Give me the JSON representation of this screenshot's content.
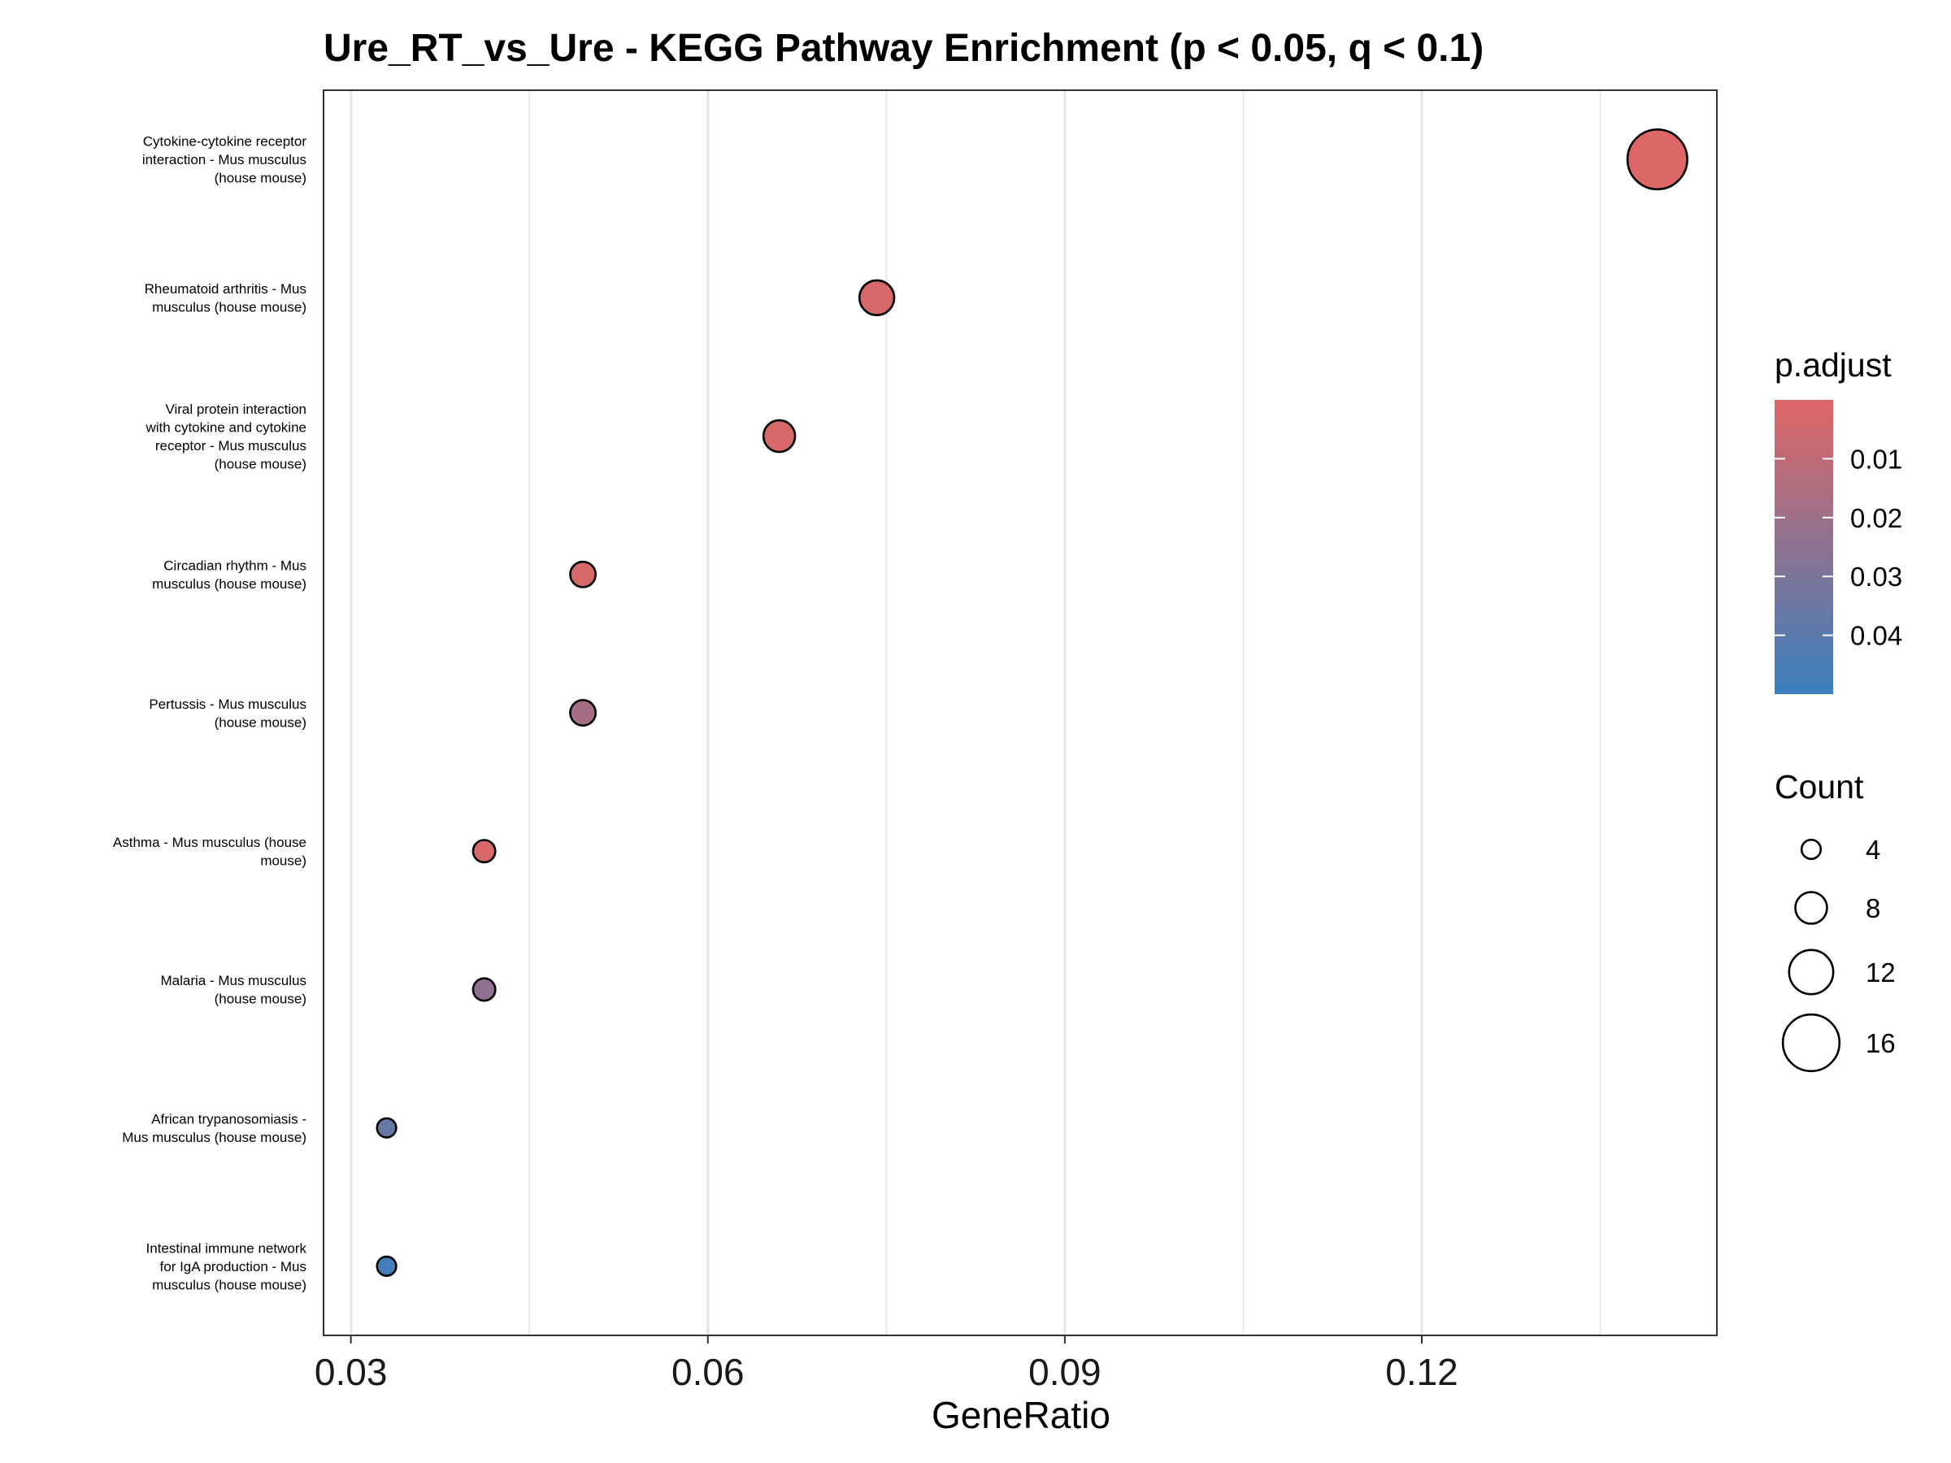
{
  "chart_data": {
    "type": "scatter",
    "title": "Ure_RT_vs_Ure - KEGG Pathway Enrichment (p < 0.05, q < 0.1)",
    "xlabel": "GeneRatio",
    "ylabel": "",
    "xlim": [
      0.0277,
      0.1448
    ],
    "x_ticks": [
      "0.03",
      "0.06",
      "0.09",
      "0.12"
    ],
    "x_tick_values": [
      0.03,
      0.06,
      0.09,
      0.12
    ],
    "grid": true,
    "categories": [
      "Cytokine-cytokine receptor\ninteraction - Mus musculus\n(house mouse)",
      "Rheumatoid arthritis - Mus\nmusculus (house mouse)",
      "Viral protein interaction\nwith cytokine and cytokine\nreceptor - Mus musculus\n(house mouse)",
      "Circadian rhythm - Mus\nmusculus (house mouse)",
      "Pertussis - Mus musculus\n(house mouse)",
      "Asthma - Mus musculus (house\nmouse)",
      "Malaria - Mus musculus\n(house mouse)",
      "African trypanosomiasis -\nMus musculus (house mouse)",
      "Intestinal immune network\nfor IgA production - Mus\nmusculus (house mouse)"
    ],
    "points": [
      {
        "gene_ratio": 0.1398,
        "count": 17,
        "p_adjust": 0.001
      },
      {
        "gene_ratio": 0.0742,
        "count": 9,
        "p_adjust": 0.003
      },
      {
        "gene_ratio": 0.066,
        "count": 8,
        "p_adjust": 0.003
      },
      {
        "gene_ratio": 0.0495,
        "count": 6,
        "p_adjust": 0.003
      },
      {
        "gene_ratio": 0.0495,
        "count": 6,
        "p_adjust": 0.018
      },
      {
        "gene_ratio": 0.0412,
        "count": 5,
        "p_adjust": 0.003
      },
      {
        "gene_ratio": 0.0412,
        "count": 5,
        "p_adjust": 0.024
      },
      {
        "gene_ratio": 0.033,
        "count": 4,
        "p_adjust": 0.036
      },
      {
        "gene_ratio": 0.033,
        "count": 4,
        "p_adjust": 0.047
      }
    ],
    "legend": {
      "placement": "right",
      "color_title": "p.adjust",
      "color_low": "#E06665",
      "color_high": "#3A7FBE",
      "color_range": [
        0.0,
        0.05
      ],
      "color_ticks": [
        "0.01",
        "0.02",
        "0.03",
        "0.04"
      ],
      "color_tick_values": [
        0.01,
        0.02,
        0.03,
        0.04
      ],
      "size_title": "Count",
      "size_labels": [
        "4",
        "8",
        "12",
        "16"
      ],
      "size_values": [
        4,
        8,
        12,
        16
      ]
    }
  }
}
